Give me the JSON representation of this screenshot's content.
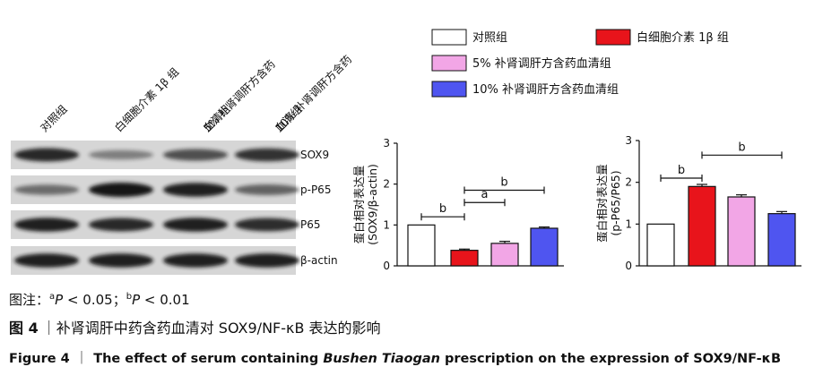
{
  "blot": {
    "lanes": [
      [
        "对照组"
      ],
      [
        "白细胞介素 1β 组"
      ],
      [
        "5% 补肾调肝方含药",
        "血清组"
      ],
      [
        "10% 补肾调肝方含药",
        "血清组"
      ]
    ],
    "rows": [
      "SOX9",
      "p-P65",
      "P65",
      "β-actin"
    ]
  },
  "legend": [
    {
      "label": "对照组",
      "color": "#ffffff"
    },
    {
      "label": "白细胞介素 1β 组",
      "color": "#e8141b"
    },
    {
      "label": "5% 补肾调肝方含药血清组",
      "color": "#f2a6e6"
    },
    {
      "label": "10% 补肾调肝方含药血清组",
      "color": "#4f55f0"
    }
  ],
  "chart_data": [
    {
      "type": "bar",
      "ylabel": [
        "蛋白相对表达量",
        "(SOX9/β-actin)"
      ],
      "values": [
        1.0,
        0.38,
        0.55,
        0.92
      ],
      "errors": [
        0,
        0.03,
        0.05,
        0.03
      ],
      "colors": [
        "#ffffff",
        "#e8141b",
        "#f2a6e6",
        "#4f55f0"
      ],
      "ylim": [
        0,
        3
      ],
      "yticks": [
        0,
        1,
        2,
        3
      ],
      "annotations": [
        "b",
        "a",
        "b"
      ]
    },
    {
      "type": "bar",
      "ylabel": [
        "蛋白相对表达量",
        "(p-P65/P65)"
      ],
      "values": [
        1.0,
        1.9,
        1.65,
        1.25
      ],
      "errors": [
        0,
        0.05,
        0.05,
        0.05
      ],
      "colors": [
        "#ffffff",
        "#e8141b",
        "#f2a6e6",
        "#4f55f0"
      ],
      "ylim": [
        0,
        3
      ],
      "yticks": [
        0,
        1,
        2,
        3
      ],
      "annotations": [
        "b",
        "b"
      ]
    }
  ],
  "caption": {
    "note": {
      "prefix": "图注：",
      "items": [
        {
          "sup": "a",
          "p": "P",
          "text": " < 0.05；"
        },
        {
          "sup": "b",
          "p": "P",
          "text": " < 0.01"
        }
      ]
    },
    "title_cn": {
      "label": "图 4",
      "text": "｜补肾调肝中药含药血清对 SOX9/NF-κB 表达的影响"
    },
    "title_en": {
      "label": "Figure 4",
      "sep": "｜",
      "pre": "The effect of serum containing ",
      "italic": "Bushen Tiaogan",
      "post": " prescription on the expression of SOX9/NF-κB"
    }
  }
}
